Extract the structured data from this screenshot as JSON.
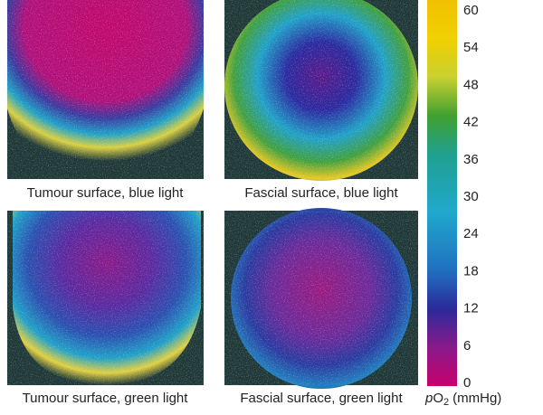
{
  "panels": [
    {
      "caption": "Tumour surface, blue light"
    },
    {
      "caption": "Fascial surface, blue light"
    },
    {
      "caption": "Tumour surface, green light"
    },
    {
      "caption": "Fascial surface, green light"
    }
  ],
  "colorbar": {
    "ticks": [
      0,
      6,
      12,
      18,
      24,
      30,
      36,
      42,
      48,
      54,
      60
    ],
    "label": {
      "italic": "p",
      "main": "O",
      "sub": "2",
      "unit": "(mmHg)"
    }
  }
}
